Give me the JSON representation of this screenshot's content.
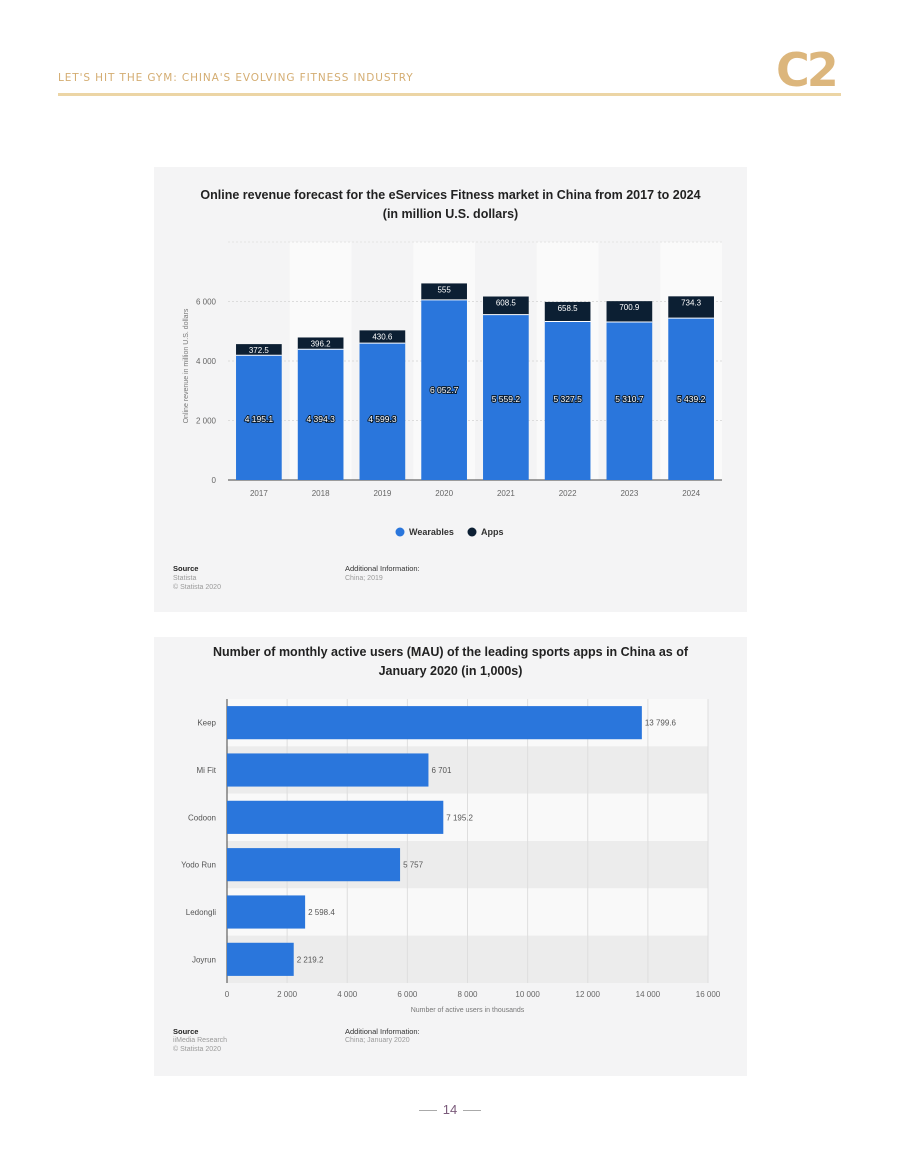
{
  "header": {
    "title": "LET'S HIT THE GYM: CHINA'S EVOLVING FITNESS INDUSTRY",
    "logo_text": "C2"
  },
  "page_number": "14",
  "colors": {
    "wearables": "#2a76dc",
    "apps": "#0c1f33",
    "header_gold": "#d4ad72"
  },
  "chart_data": [
    {
      "type": "bar",
      "stacked": true,
      "title": "Online revenue forecast for the eServices Fitness market in China from 2017 to 2024",
      "subtitle": "(in million U.S. dollars)",
      "ylabel": "Online revenue in million U.S. dollars",
      "xlabel": "",
      "ylim": [
        0,
        8000
      ],
      "yticks": [
        0,
        2000,
        4000,
        6000
      ],
      "ytick_labels": [
        "0",
        "2 000",
        "4 000",
        "6 000"
      ],
      "categories": [
        "2017",
        "2018",
        "2019",
        "2020",
        "2021",
        "2022",
        "2023",
        "2024"
      ],
      "series": [
        {
          "name": "Wearables",
          "values": [
            4195.1,
            4394.3,
            4599.3,
            6052.7,
            5559.2,
            5327.5,
            5310.7,
            5439.2
          ],
          "labels": [
            "4 195.1",
            "4 394.3",
            "4 599.3",
            "6 052.7",
            "5 559.2",
            "5 327.5",
            "5 310.7",
            "5 439.2"
          ]
        },
        {
          "name": "Apps",
          "values": [
            372.5,
            396.2,
            430.6,
            555,
            608.5,
            658.5,
            700.9,
            734.3
          ],
          "labels": [
            "372.5",
            "396.2",
            "430.6",
            "555",
            "608.5",
            "658.5",
            "700.9",
            "734.3"
          ]
        }
      ],
      "grid": true,
      "legend": "bottom-center",
      "source": {
        "heading": "Source",
        "lines": [
          "Statista",
          "© Statista 2020"
        ]
      },
      "additional_info": {
        "heading": "Additional Information:",
        "lines": [
          "China; 2019"
        ]
      }
    },
    {
      "type": "bar",
      "orientation": "horizontal",
      "title": "Number of monthly active users (MAU) of the leading sports apps in China as of",
      "subtitle": "January 2020 (in 1,000s)",
      "xlabel": "Number of active users in thousands",
      "ylabel": "",
      "xlim": [
        0,
        16000
      ],
      "xticks": [
        0,
        2000,
        4000,
        6000,
        8000,
        10000,
        12000,
        14000,
        16000
      ],
      "xtick_labels": [
        "0",
        "2 000",
        "4 000",
        "6 000",
        "8 000",
        "10 000",
        "12 000",
        "14 000",
        "16 000"
      ],
      "categories": [
        "Keep",
        "Mi Fit",
        "Codoon",
        "Yodo Run",
        "Ledongli",
        "Joyrun"
      ],
      "values": [
        13799.6,
        6701,
        7195.2,
        5757,
        2598.4,
        2219.2
      ],
      "labels": [
        "13 799.6",
        "6 701",
        "7 195.2",
        "5 757",
        "2 598.4",
        "2 219.2"
      ],
      "grid": true,
      "source": {
        "heading": "Source",
        "lines": [
          "iiMedia Research",
          "© Statista 2020"
        ]
      },
      "additional_info": {
        "heading": "Additional Information:",
        "lines": [
          "China; January 2020"
        ]
      }
    }
  ]
}
